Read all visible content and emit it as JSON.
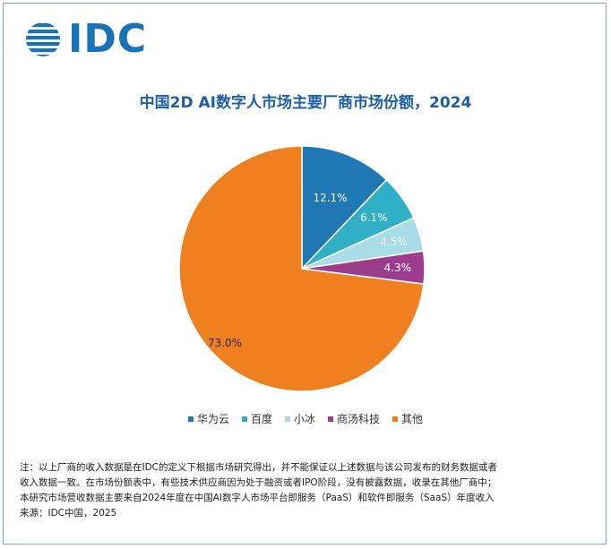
{
  "brand": {
    "logo_text": "IDC",
    "brand_color": "#1a73b8"
  },
  "chart_data": {
    "type": "pie",
    "title": "中国2D AI数字人市场主要厂商市场份额，2024",
    "legend_position": "bottom",
    "slices": [
      {
        "name": "华为云",
        "value": 12.1,
        "label": "12.1%",
        "color": "#1f77b4"
      },
      {
        "name": "百度",
        "value": 6.1,
        "label": "6.1%",
        "color": "#30b0c7"
      },
      {
        "name": "小冰",
        "value": 4.5,
        "label": "4.5%",
        "color": "#a8dce6"
      },
      {
        "name": "商汤科技",
        "value": 4.3,
        "label": "4.3%",
        "color": "#9b3c8c"
      },
      {
        "name": "其他",
        "value": 73.0,
        "label": "73.0%",
        "color": "#f07f1f"
      }
    ]
  },
  "notes": {
    "line1": "注：以上厂商的收入数据是在IDC的定义下根据市场研究得出，并不能保证以上述数据与该公司发布的财务数据或者",
    "line2": "收入数据一致。在市场份额表中，有些技术供应商因为处于融资或者IPO阶段，没有披露数据，收录在其他厂商中；",
    "line3": "本研究市场营收数据主要来自2024年度在中国AI数字人市场平台即服务（PaaS）和软件即服务（SaaS）年度收入",
    "source": "来源：IDC中国，2025"
  }
}
